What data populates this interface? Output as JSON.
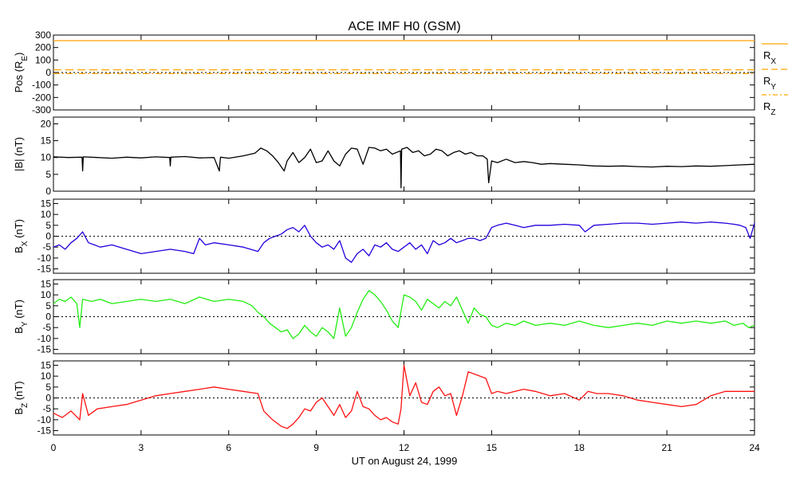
{
  "title": "ACE IMF H0 (GSM)",
  "x_axis": {
    "label": "UT on August 24, 1999",
    "range": [
      0,
      24
    ],
    "ticks": [
      0,
      3,
      6,
      9,
      12,
      15,
      18,
      21,
      24
    ],
    "tick_labels": [
      "0",
      "3",
      "6",
      "9",
      "12",
      "15",
      "18",
      "21",
      "24"
    ]
  },
  "position_legend": [
    {
      "label": "R",
      "sub": "X",
      "color": "#FFA500",
      "style": "solid"
    },
    {
      "label": "R",
      "sub": "Y",
      "color": "#FFA500",
      "style": "dashed"
    },
    {
      "label": "R",
      "sub": "Z",
      "color": "#FFA500",
      "style": "dashdot"
    }
  ],
  "colors": {
    "position": "#FFA500",
    "btotal": "#000000",
    "bx": "#2200DD",
    "by": "#22EE11",
    "bz": "#FF1111",
    "zero_line": "#000000"
  },
  "chart_data": [
    {
      "type": "line",
      "panel": "position",
      "ylabel": {
        "main": "Pos (R",
        "sub": "E",
        "tail": ")"
      },
      "ylim": [
        -300,
        300
      ],
      "yticks": [
        -300,
        -200,
        -100,
        0,
        100,
        200,
        300
      ],
      "ytick_labels": [
        "-300",
        "-200",
        "-100",
        "0",
        "100",
        "200",
        "300"
      ],
      "zero_line": true,
      "series": [
        {
          "name": "RX",
          "color": "#FFA500",
          "style": "solid",
          "x": [
            0,
            24
          ],
          "values": [
            255,
            255
          ]
        },
        {
          "name": "RY",
          "color": "#FFA500",
          "style": "dashed",
          "x": [
            0,
            24
          ],
          "values": [
            22,
            22
          ]
        },
        {
          "name": "RZ",
          "color": "#FFA500",
          "style": "dashdot",
          "x": [
            0,
            24
          ],
          "values": [
            -9,
            -9
          ]
        }
      ]
    },
    {
      "type": "line",
      "panel": "btotal",
      "ylabel": {
        "main": "|B| (nT)",
        "sub": "",
        "tail": ""
      },
      "ylim": [
        0,
        22
      ],
      "yticks": [
        0,
        5,
        10,
        15,
        20
      ],
      "ytick_labels": [
        "0",
        "5",
        "10",
        "15",
        "20"
      ],
      "zero_line": false,
      "series": [
        {
          "name": "",
          "color": "#000000",
          "style": "solid",
          "x": [
            0,
            0.5,
            0.98,
            1.0,
            1.02,
            1.5,
            2,
            2.5,
            3,
            3.5,
            3.98,
            4.0,
            4.02,
            4.5,
            5,
            5.5,
            5.68,
            5.7,
            5.72,
            6,
            6.5,
            6.9,
            7.1,
            7.3,
            7.5,
            7.7,
            7.9,
            8.0,
            8.2,
            8.4,
            8.6,
            8.8,
            9.0,
            9.2,
            9.4,
            9.6,
            9.8,
            10.0,
            10.2,
            10.4,
            10.6,
            10.8,
            11.0,
            11.2,
            11.4,
            11.6,
            11.88,
            11.9,
            11.92,
            12.1,
            12.3,
            12.5,
            12.7,
            12.9,
            13.1,
            13.3,
            13.5,
            13.7,
            13.9,
            14.1,
            14.3,
            14.5,
            14.7,
            14.85,
            14.9,
            15.0,
            15.2,
            15.5,
            15.8,
            16.1,
            16.4,
            16.7,
            17,
            17.5,
            18,
            18.5,
            19,
            19.5,
            20,
            20.5,
            21,
            21.5,
            22,
            22.5,
            23,
            23.5,
            24
          ],
          "values": [
            10.2,
            10.0,
            10.1,
            6.0,
            10.2,
            10.0,
            9.8,
            10.1,
            9.9,
            10.2,
            10.0,
            7.5,
            10.1,
            10.3,
            9.9,
            10.0,
            6.0,
            8.5,
            10.1,
            9.8,
            10.5,
            11.3,
            12.8,
            12.0,
            10.5,
            8.5,
            6.0,
            9.0,
            11.5,
            8.5,
            10.0,
            12.5,
            8.5,
            9.0,
            12.0,
            9.0,
            7.5,
            11.0,
            12.8,
            12.5,
            8.0,
            13.0,
            12.8,
            12.0,
            12.5,
            11.0,
            12.0,
            1.0,
            12.5,
            13.0,
            11.5,
            12.0,
            10.5,
            11.0,
            12.5,
            12.0,
            10.5,
            11.5,
            12.0,
            11.0,
            11.5,
            10.5,
            10.5,
            9.5,
            2.5,
            9.0,
            8.5,
            9.5,
            8.5,
            8.8,
            8.5,
            8.0,
            8.2,
            8.0,
            7.8,
            7.5,
            7.4,
            7.5,
            7.3,
            7.2,
            7.4,
            7.3,
            7.5,
            7.4,
            7.6,
            7.8,
            8.0
          ]
        }
      ]
    },
    {
      "type": "line",
      "panel": "bx",
      "ylabel": {
        "main": "B",
        "sub": "X",
        "tail": " (nT)"
      },
      "ylim": [
        -17,
        17
      ],
      "yticks": [
        -15,
        -10,
        -5,
        0,
        5,
        10,
        15
      ],
      "ytick_labels": [
        "-15",
        "-10",
        "-5",
        "0",
        "5",
        "10",
        "15"
      ],
      "zero_line": true,
      "series": [
        {
          "name": "",
          "color": "#2200DD",
          "style": "solid",
          "x": [
            0,
            0.2,
            0.4,
            0.6,
            0.8,
            1.0,
            1.2,
            1.4,
            1.6,
            2,
            2.5,
            3,
            3.5,
            4,
            4.5,
            4.8,
            5.0,
            5.2,
            5.5,
            6,
            6.5,
            7.0,
            7.2,
            7.4,
            7.6,
            7.8,
            8.0,
            8.2,
            8.4,
            8.6,
            8.8,
            9.0,
            9.2,
            9.4,
            9.6,
            9.8,
            10.0,
            10.2,
            10.4,
            10.6,
            10.8,
            11.0,
            11.2,
            11.4,
            11.6,
            11.8,
            12.0,
            12.2,
            12.4,
            12.6,
            12.8,
            13.0,
            13.2,
            13.4,
            13.6,
            13.8,
            14.0,
            14.2,
            14.4,
            14.6,
            14.8,
            15.0,
            15.2,
            15.5,
            15.8,
            16.1,
            16.5,
            17,
            17.5,
            18,
            18.2,
            18.5,
            19,
            19.5,
            20,
            20.5,
            21,
            21.5,
            22,
            22.5,
            23,
            23.3,
            23.5,
            23.7,
            23.85,
            24
          ],
          "values": [
            -5,
            -4,
            -6,
            -3,
            -1,
            2,
            -3,
            -4,
            -5,
            -4,
            -6,
            -8,
            -7,
            -6,
            -7,
            -8,
            -1,
            -4,
            -3,
            -4,
            -5,
            -7,
            -3,
            -1,
            0,
            1,
            3,
            4,
            2,
            5,
            0,
            -3,
            -5,
            -4,
            -6,
            -2,
            -10,
            -12,
            -8,
            -6,
            -9,
            -4,
            -5,
            -3,
            -6,
            -7,
            -5,
            -3,
            -6,
            -4,
            -8,
            -2,
            -4,
            -3,
            -1,
            -3,
            -2,
            -1,
            -1,
            -2,
            -1,
            4,
            5,
            6,
            5,
            4,
            5,
            5,
            5.5,
            5,
            2,
            5,
            5.5,
            6,
            6,
            5.5,
            6,
            6.5,
            6,
            6.5,
            6,
            5.5,
            5,
            4,
            -1,
            6
          ]
        }
      ]
    },
    {
      "type": "line",
      "panel": "by",
      "ylabel": {
        "main": "B",
        "sub": "Y",
        "tail": " (nT)"
      },
      "ylim": [
        -17,
        17
      ],
      "yticks": [
        -15,
        -10,
        -5,
        0,
        5,
        10,
        15
      ],
      "ytick_labels": [
        "-15",
        "-10",
        "-5",
        "0",
        "5",
        "10",
        "15"
      ],
      "zero_line": true,
      "series": [
        {
          "name": "",
          "color": "#22EE11",
          "style": "solid",
          "x": [
            0,
            0.2,
            0.4,
            0.6,
            0.8,
            0.9,
            1.0,
            1.3,
            1.6,
            2,
            2.5,
            3,
            3.5,
            4,
            4.5,
            5,
            5.5,
            6,
            6.5,
            6.8,
            7.0,
            7.2,
            7.4,
            7.6,
            7.8,
            8.0,
            8.2,
            8.4,
            8.6,
            8.8,
            9.0,
            9.2,
            9.4,
            9.6,
            9.8,
            10.0,
            10.2,
            10.4,
            10.6,
            10.8,
            11.0,
            11.2,
            11.4,
            11.6,
            11.8,
            12.0,
            12.2,
            12.4,
            12.6,
            12.8,
            13.0,
            13.2,
            13.4,
            13.6,
            13.8,
            14.0,
            14.2,
            14.4,
            14.6,
            14.8,
            15.0,
            15.2,
            15.5,
            15.8,
            16.1,
            16.5,
            17,
            17.5,
            18,
            18.5,
            19,
            19.5,
            20,
            20.5,
            21,
            21.5,
            22,
            22.5,
            23,
            23.3,
            23.6,
            23.8,
            24
          ],
          "values": [
            6,
            8,
            7,
            9,
            6,
            -5,
            8,
            7,
            8,
            6,
            7,
            8,
            7,
            8,
            6,
            9,
            7,
            8,
            7,
            5,
            2,
            0,
            -3,
            -5,
            -7,
            -6,
            -10,
            -8,
            -4,
            -7,
            -9,
            -5,
            -7,
            -10,
            4,
            -9,
            -5,
            2,
            8,
            12,
            10,
            7,
            3,
            -2,
            -5,
            10,
            9,
            7,
            3,
            8,
            6,
            4,
            7,
            5,
            9,
            3,
            -3,
            4,
            1,
            0,
            -4,
            -5,
            -3,
            -4,
            -2,
            -4,
            -3,
            -4,
            -2,
            -4,
            -5,
            -4,
            -3,
            -4,
            -2,
            -3,
            -2,
            -3,
            -2,
            -4,
            -3,
            -5,
            -4
          ]
        }
      ]
    },
    {
      "type": "line",
      "panel": "bz",
      "ylabel": {
        "main": "B",
        "sub": "Z",
        "tail": " (nT)"
      },
      "ylim": [
        -17,
        17
      ],
      "yticks": [
        -15,
        -10,
        -5,
        0,
        5,
        10,
        15
      ],
      "ytick_labels": [
        "-15",
        "-10",
        "-5",
        "0",
        "5",
        "10",
        "15"
      ],
      "zero_line": true,
      "series": [
        {
          "name": "",
          "color": "#FF1111",
          "style": "solid",
          "x": [
            0,
            0.3,
            0.6,
            0.9,
            1.0,
            1.2,
            1.5,
            2,
            2.5,
            3,
            3.5,
            4,
            4.5,
            5,
            5.5,
            6,
            6.5,
            7.0,
            7.2,
            7.5,
            7.8,
            8.0,
            8.2,
            8.4,
            8.6,
            8.8,
            9.0,
            9.2,
            9.4,
            9.6,
            9.8,
            10.0,
            10.2,
            10.4,
            10.6,
            10.8,
            11.0,
            11.2,
            11.4,
            11.6,
            11.8,
            11.9,
            12.0,
            12.2,
            12.4,
            12.6,
            12.8,
            13.0,
            13.2,
            13.4,
            13.6,
            13.8,
            14.0,
            14.2,
            14.4,
            14.6,
            14.8,
            15.0,
            15.2,
            15.5,
            15.8,
            16.1,
            16.5,
            17,
            17.5,
            18,
            18.3,
            18.6,
            19,
            19.5,
            20,
            20.5,
            21,
            21.5,
            22,
            22.5,
            23,
            23.5,
            24
          ],
          "values": [
            -7,
            -9,
            -6,
            -10,
            2,
            -8,
            -5,
            -4,
            -3,
            -1,
            1,
            2,
            3,
            4,
            5,
            4,
            3,
            2,
            -6,
            -10,
            -13,
            -14,
            -12,
            -9,
            -5,
            -6,
            -2,
            0,
            -4,
            -8,
            -3,
            -9,
            -6,
            3,
            -4,
            -5,
            -8,
            -10,
            -9,
            -11,
            -12,
            -5,
            15,
            1,
            7,
            -2,
            -3,
            3,
            5,
            1,
            2,
            -8,
            1,
            12,
            11,
            10,
            9,
            2,
            3,
            2,
            3,
            4,
            3,
            1,
            2,
            -1,
            3,
            2,
            2,
            1,
            -1,
            -2,
            -3,
            -4,
            -3,
            1,
            3,
            3,
            3
          ]
        }
      ]
    }
  ]
}
